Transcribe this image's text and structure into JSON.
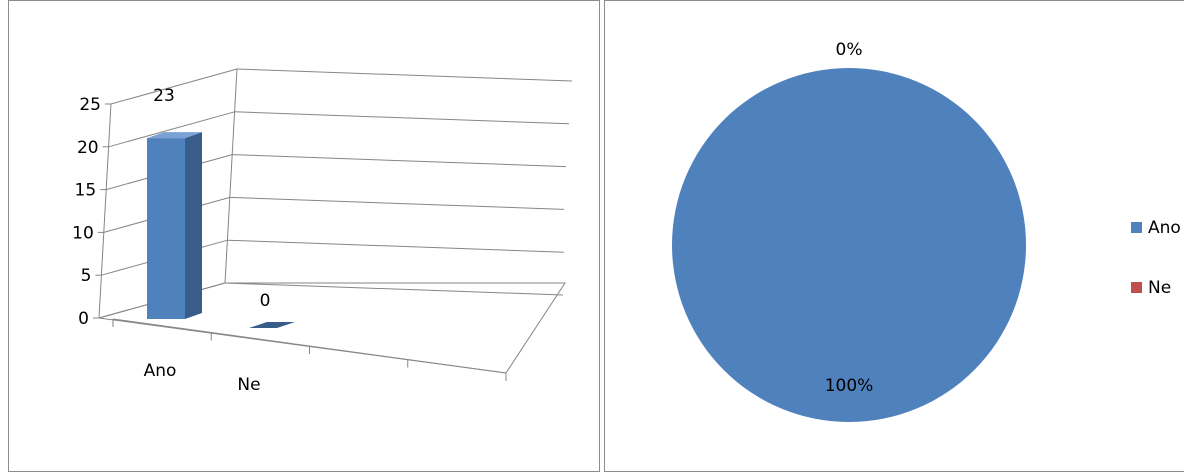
{
  "chart_data": [
    {
      "type": "bar",
      "categories": [
        "Ano",
        "Ne"
      ],
      "values": [
        23,
        0
      ],
      "data_labels": [
        "23",
        "0"
      ],
      "ylim": [
        0,
        25
      ],
      "y_ticks": [
        "0",
        "5",
        "10",
        "15",
        "20",
        "25"
      ],
      "grid": true,
      "colors": {
        "bar_front": "#4f81bd",
        "bar_side": "#385d8a",
        "bar_top": "#7aa2d6"
      }
    },
    {
      "type": "pie",
      "categories": [
        "Ano",
        "Ne"
      ],
      "values": [
        100,
        0
      ],
      "data_labels": [
        "100%",
        "0%"
      ],
      "legend_position": "right",
      "colors": [
        "#4f81bd",
        "#c0504d"
      ]
    }
  ]
}
